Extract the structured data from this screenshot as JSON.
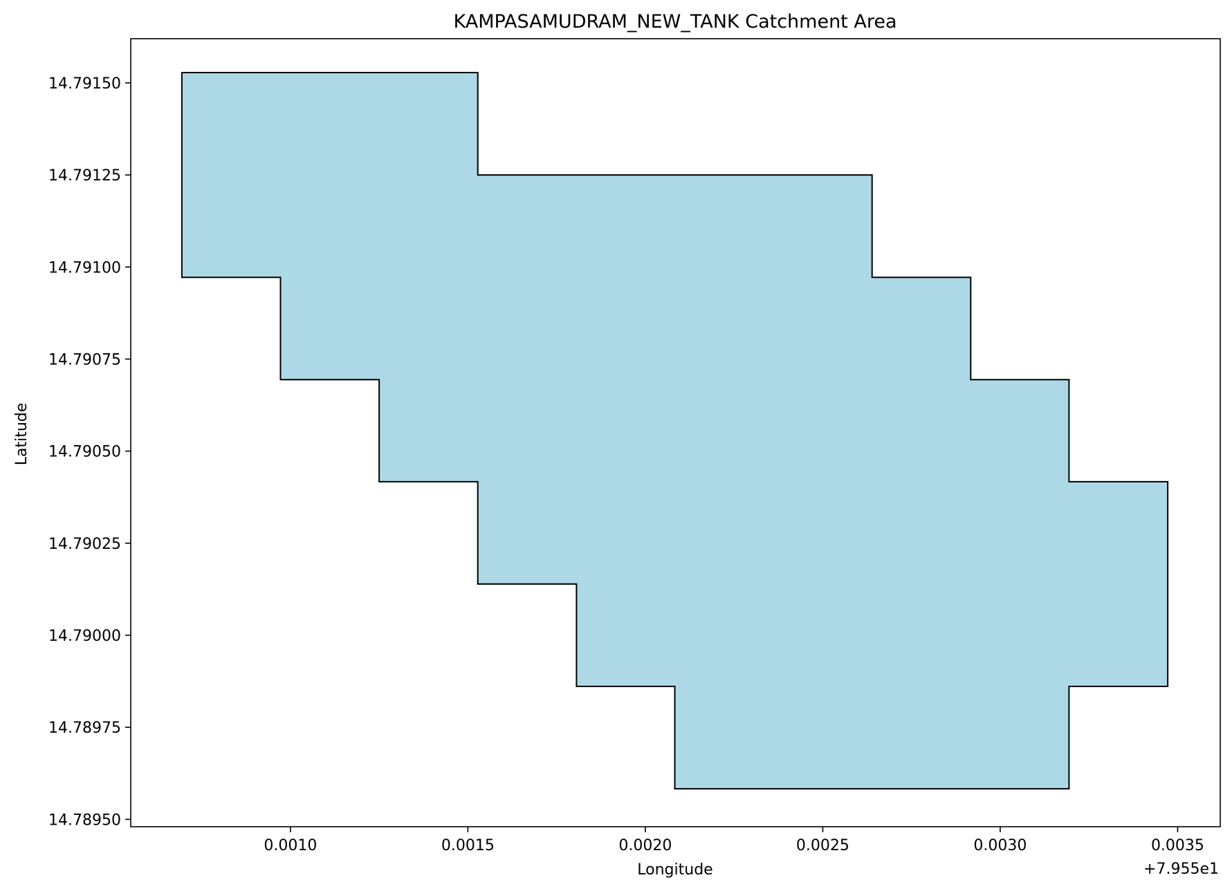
{
  "chart_data": {
    "type": "area",
    "title": "KAMPASAMUDRAM_NEW_TANK Catchment Area",
    "xlabel": "Longitude",
    "ylabel": "Latitude",
    "x_offset_label": "+7.955e1",
    "x_offset": 79.55,
    "xlim": [
      0.00055,
      0.00362
    ],
    "ylim": [
      14.78948,
      14.79162
    ],
    "xticks": [
      0.001,
      0.0015,
      0.002,
      0.0025,
      0.003,
      0.0035
    ],
    "xtick_labels": [
      "0.0010",
      "0.0015",
      "0.0020",
      "0.0025",
      "0.0030",
      "0.0035"
    ],
    "yticks": [
      14.7915,
      14.79125,
      14.791,
      14.79075,
      14.7905,
      14.79025,
      14.79,
      14.78975,
      14.7895
    ],
    "ytick_labels": [
      "14.79150",
      "14.79125",
      "14.79100",
      "14.79075",
      "14.79050",
      "14.79025",
      "14.79000",
      "14.78975",
      "14.78950"
    ],
    "grid": false,
    "polygon": {
      "name": "KAMPASAMUDRAM_NEW_TANK",
      "fill_color": "#add8e6",
      "edge_color": "#000000",
      "points": [
        [
          0.000694,
          14.791528
        ],
        [
          0.001528,
          14.791528
        ],
        [
          0.001528,
          14.79125
        ],
        [
          0.002639,
          14.79125
        ],
        [
          0.002639,
          14.790972
        ],
        [
          0.002917,
          14.790972
        ],
        [
          0.002917,
          14.790694
        ],
        [
          0.003194,
          14.790694
        ],
        [
          0.003194,
          14.790417
        ],
        [
          0.003472,
          14.790417
        ],
        [
          0.003472,
          14.789861
        ],
        [
          0.003194,
          14.789861
        ],
        [
          0.003194,
          14.789583
        ],
        [
          0.002083,
          14.789583
        ],
        [
          0.002083,
          14.789861
        ],
        [
          0.001806,
          14.789861
        ],
        [
          0.001806,
          14.790139
        ],
        [
          0.001528,
          14.790139
        ],
        [
          0.001528,
          14.790417
        ],
        [
          0.00125,
          14.790417
        ],
        [
          0.00125,
          14.790694
        ],
        [
          0.000972,
          14.790694
        ],
        [
          0.000972,
          14.790972
        ],
        [
          0.000694,
          14.790972
        ]
      ]
    }
  }
}
